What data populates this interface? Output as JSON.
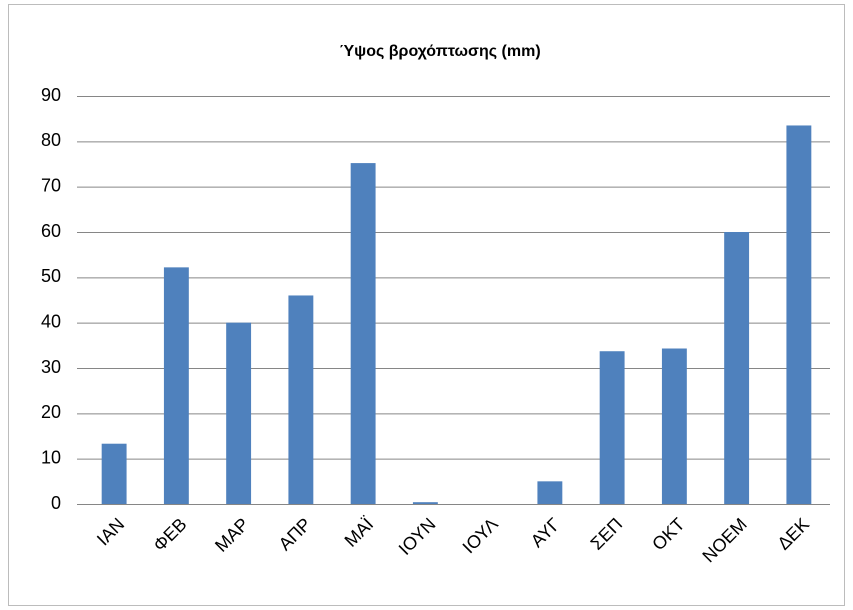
{
  "chart_data": {
    "type": "bar",
    "title": "Ύψος βροχόπτωσης (mm)",
    "categories": [
      "ΙΑΝ",
      "ΦΕΒ",
      "ΜΑΡ",
      "ΑΠΡ",
      "ΜΑΪ",
      "ΙΟΥΝ",
      "ΙΟΥΛ",
      "ΑΥΓ",
      "ΣΕΠ",
      "ΟΚΤ",
      "ΝΟΕΜ",
      "ΔΕΚ"
    ],
    "values": [
      13.3,
      52.2,
      40,
      46,
      75.2,
      0.4,
      0,
      5,
      33.7,
      34.3,
      60,
      83.5
    ],
    "color": "#4f81bd",
    "ylim": [
      0,
      90
    ],
    "yticks": [
      0,
      10,
      20,
      30,
      40,
      50,
      60,
      70,
      80,
      90
    ],
    "grid": true
  }
}
